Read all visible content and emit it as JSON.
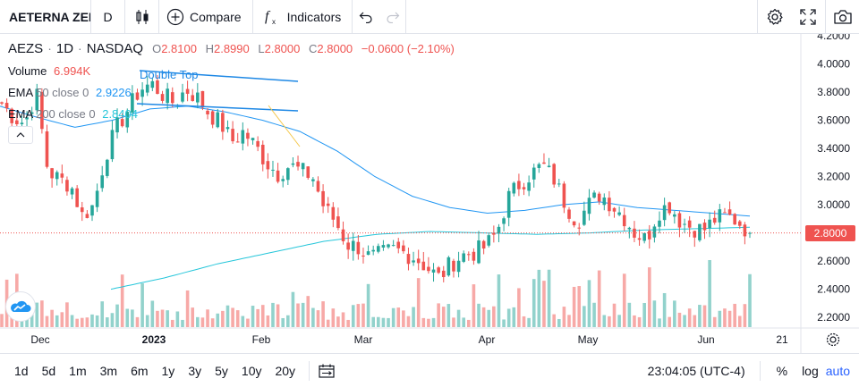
{
  "toolbar": {
    "symbol": "AETERNA ZENTARIS INC",
    "interval": "D",
    "compare_label": "Compare",
    "indicators_label": "Indicators",
    "icons": [
      "candles-icon",
      "plus-circle-icon",
      "function-icon",
      "undo-icon",
      "redo-icon",
      "gear-icon",
      "fullscreen-icon",
      "camera-icon"
    ]
  },
  "legend": {
    "symbol": "AEZS",
    "interval": "1D",
    "exchange": "NASDAQ",
    "open_label": "O",
    "open": "2.8100",
    "high_label": "H",
    "high": "2.8990",
    "low_label": "L",
    "low": "2.8000",
    "close_label": "C",
    "close": "2.8000",
    "change": "−0.0600 (−2.10%)",
    "volume_label": "Volume",
    "volume_value": "6.994K",
    "ema50_label": "EMA",
    "ema50_params": "50 close 0",
    "ema50_value": "2.9226",
    "ema200_label": "EMA",
    "ema200_params": "200 close 0",
    "ema200_value": "2.8404"
  },
  "annotation": {
    "label": "Double Top"
  },
  "price_axis": {
    "ticks": [
      "4.2000",
      "4.0000",
      "3.8000",
      "3.6000",
      "3.4000",
      "3.2000",
      "3.0000",
      "2.8000",
      "2.6000",
      "2.4000",
      "2.2000"
    ],
    "last_price": "2.8000"
  },
  "time_axis": {
    "ticks": [
      "Dec",
      "2023",
      "Feb",
      "Mar",
      "Apr",
      "May",
      "Jun",
      "21"
    ]
  },
  "colors": {
    "up": "#26a69a",
    "down": "#ef5350",
    "ema50": "#2196f3",
    "ema200": "#26c6da",
    "accent": "#2962ff"
  },
  "bottombar": {
    "ranges": [
      "1d",
      "5d",
      "1m",
      "3m",
      "6m",
      "1y",
      "3y",
      "5y",
      "10y",
      "20y"
    ],
    "time": "23:04:05 (UTC-4)",
    "percent_label": "%",
    "log_label": "log",
    "auto_label": "auto"
  },
  "chart_data": {
    "type": "candlestick",
    "ylim": [
      2.15,
      4.2
    ],
    "x": [
      "Dec",
      "2023",
      "Feb",
      "Mar",
      "Apr",
      "May",
      "Jun",
      "21"
    ],
    "close_anchors": [
      3.72,
      3.62,
      3.58,
      3.8,
      3.24,
      3.18,
      3.14,
      2.92,
      3.0,
      3.35,
      3.55,
      3.68,
      3.82,
      3.86,
      3.78,
      3.72,
      3.82,
      3.76,
      3.65,
      3.58,
      3.45,
      3.52,
      3.42,
      3.3,
      3.22,
      3.28,
      3.24,
      3.2,
      2.98,
      2.88,
      2.72,
      2.7,
      2.62,
      2.65,
      2.68,
      2.66,
      2.62,
      2.55,
      2.48,
      2.58,
      2.64,
      2.66,
      2.7,
      2.8,
      3.05,
      3.15,
      3.22,
      3.28,
      3.18,
      3.0,
      2.88,
      3.0,
      3.08,
      3.0,
      2.92,
      2.8,
      2.75,
      2.95,
      3.0,
      2.88,
      2.84,
      2.82,
      2.9,
      2.92,
      2.88,
      2.8
    ],
    "ema50_anchors": [
      3.7,
      3.62,
      3.55,
      3.6,
      3.68,
      3.7,
      3.66,
      3.6,
      3.52,
      3.38,
      3.2,
      3.06,
      2.98,
      2.94,
      2.96,
      3.0,
      3.02,
      2.98,
      2.96,
      2.94,
      2.92
    ],
    "ema200_anchors": [
      2.4,
      2.48,
      2.58,
      2.66,
      2.74,
      2.79,
      2.81,
      2.8,
      2.79,
      2.8,
      2.82,
      2.83,
      2.84
    ]
  }
}
